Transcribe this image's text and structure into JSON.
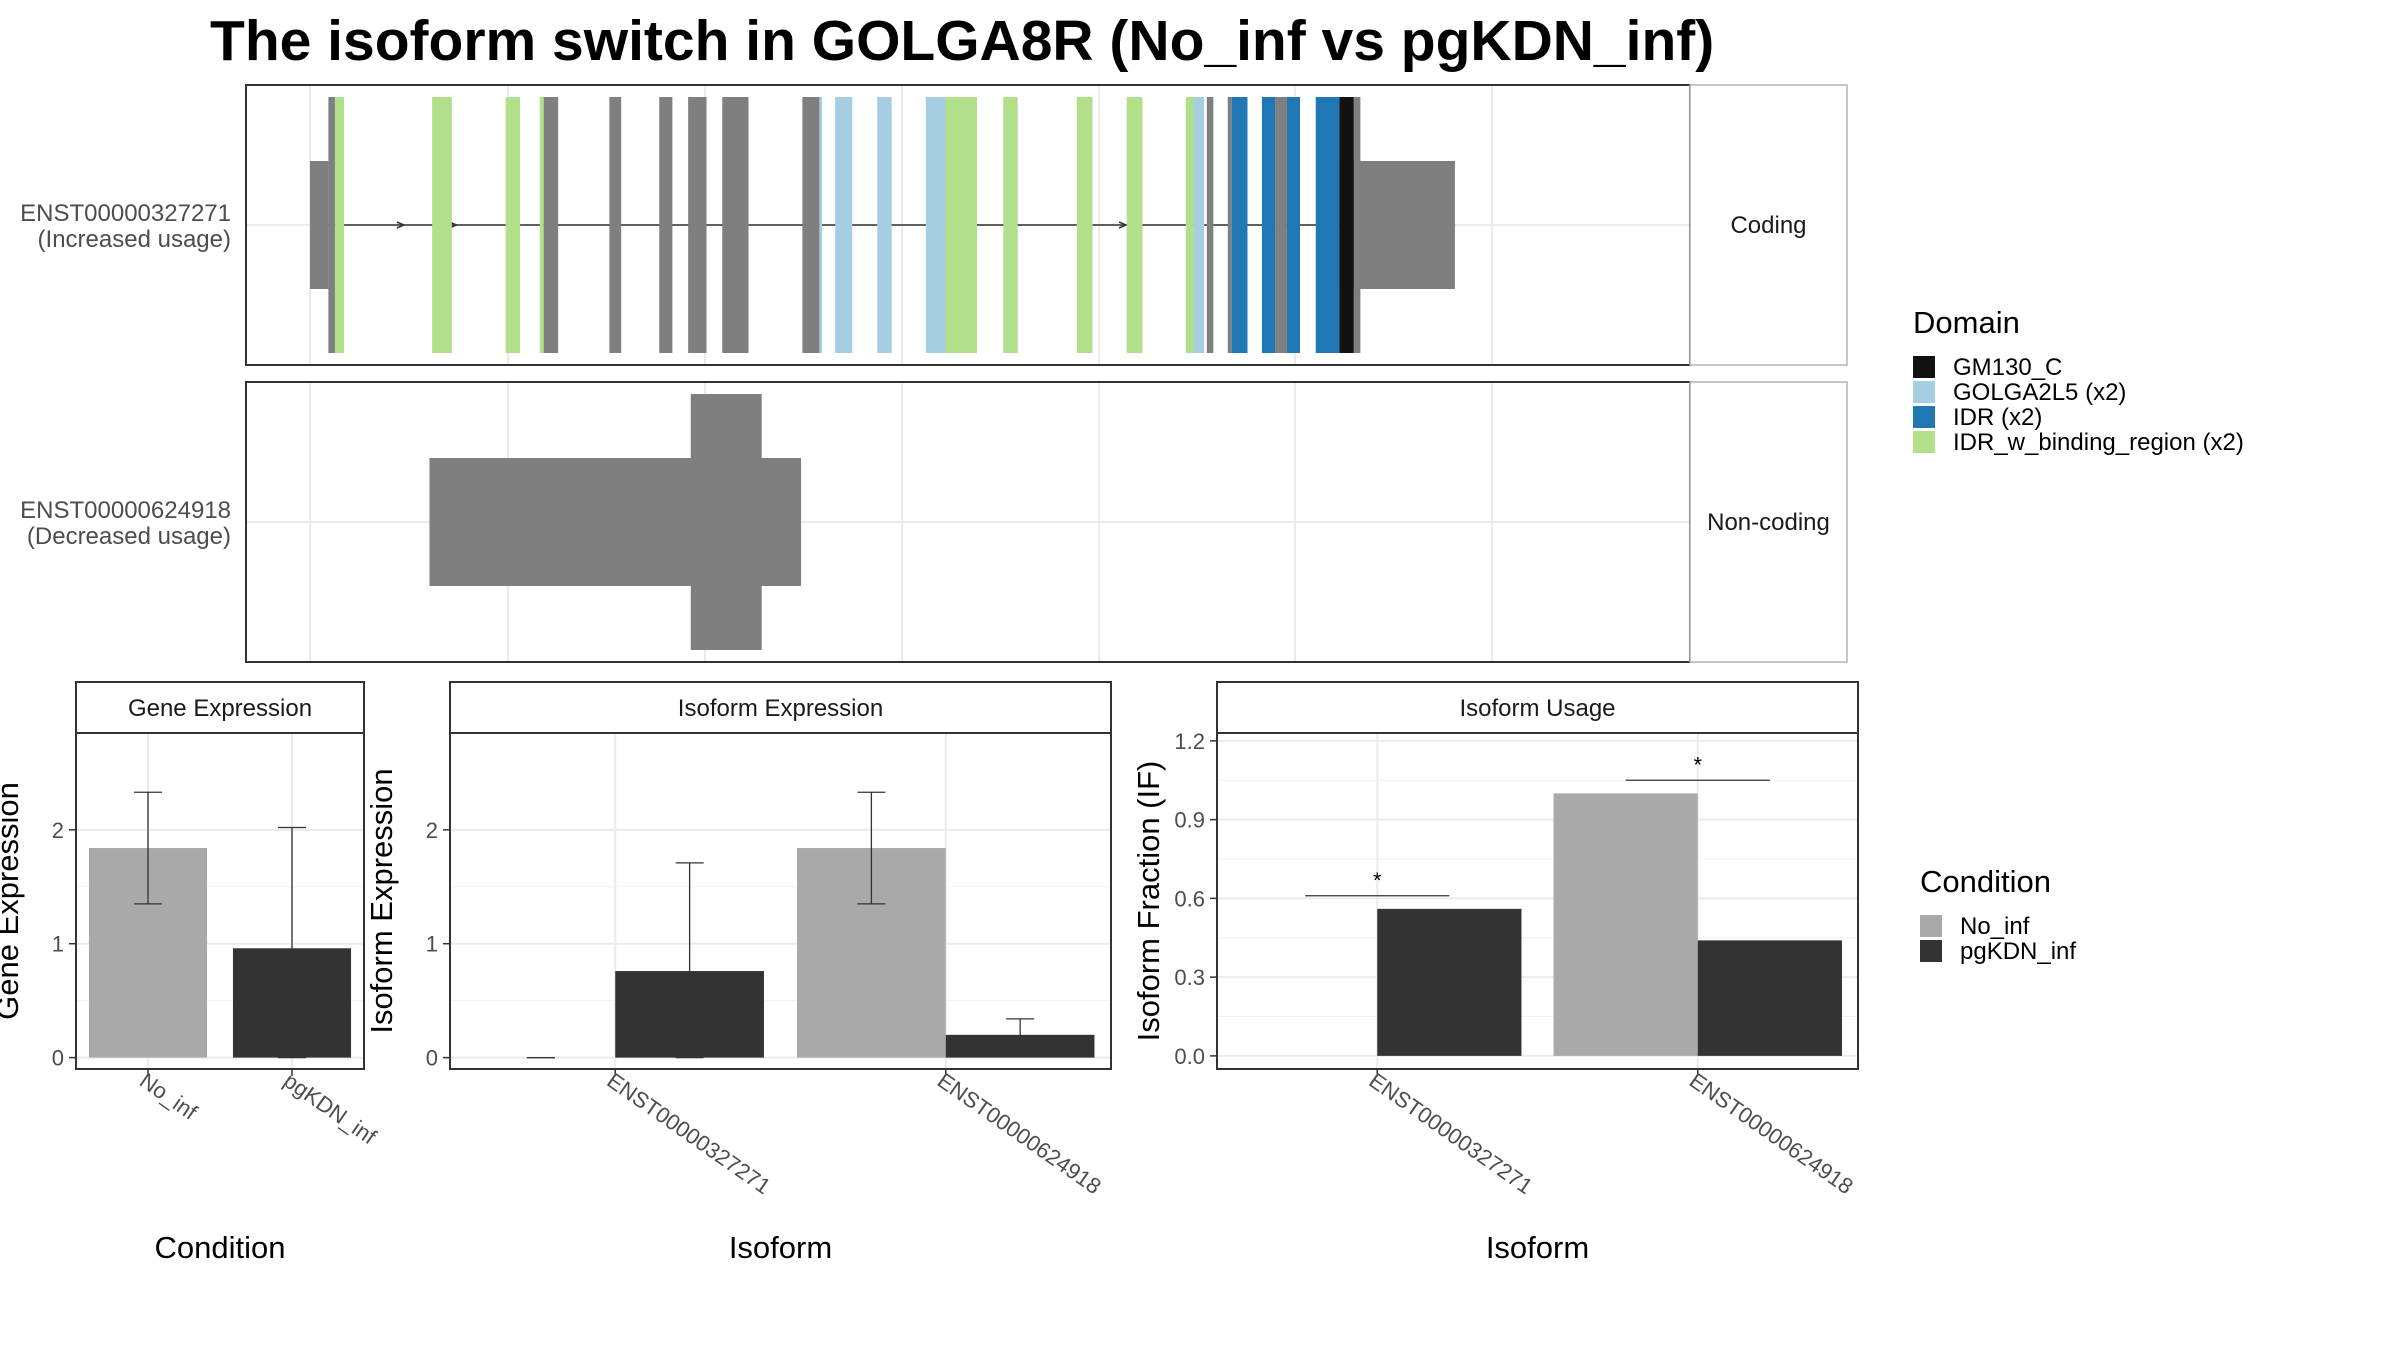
{
  "title": "The isoform switch in GOLGA8R (No_inf vs pgKDN_inf)",
  "transcripts": [
    {
      "id": "ENST00000327271",
      "usage": "(Increased usage)",
      "type": "Coding",
      "utr5": [
        0,
        0.014
      ],
      "utr3": [
        0.784,
        0.872
      ],
      "exons": [
        {
          "s": 0.014,
          "e": 0.019,
          "c": "#7f7f7f"
        },
        {
          "s": 0.019,
          "e": 0.026,
          "c": "#b2df8a"
        },
        {
          "s": 0.093,
          "e": 0.108,
          "c": "#b2df8a"
        },
        {
          "s": 0.149,
          "e": 0.16,
          "c": "#b2df8a"
        },
        {
          "s": 0.175,
          "e": 0.178,
          "c": "#b2df8a"
        },
        {
          "s": 0.178,
          "e": 0.189,
          "c": "#7f7f7f"
        },
        {
          "s": 0.228,
          "e": 0.237,
          "c": "#7f7f7f"
        },
        {
          "s": 0.266,
          "e": 0.276,
          "c": "#7f7f7f"
        },
        {
          "s": 0.288,
          "e": 0.302,
          "c": "#7f7f7f"
        },
        {
          "s": 0.314,
          "e": 0.334,
          "c": "#7f7f7f"
        },
        {
          "s": 0.375,
          "e": 0.388,
          "c": "#7f7f7f"
        },
        {
          "s": 0.388,
          "e": 0.39,
          "c": "#a6cee3"
        },
        {
          "s": 0.4,
          "e": 0.413,
          "c": "#a6cee3"
        },
        {
          "s": 0.432,
          "e": 0.443,
          "c": "#a6cee3"
        },
        {
          "s": 0.469,
          "e": 0.484,
          "c": "#a6cee3"
        },
        {
          "s": 0.484,
          "e": 0.508,
          "c": "#b2df8a"
        },
        {
          "s": 0.528,
          "e": 0.539,
          "c": "#b2df8a"
        },
        {
          "s": 0.584,
          "e": 0.596,
          "c": "#b2df8a"
        },
        {
          "s": 0.622,
          "e": 0.634,
          "c": "#b2df8a"
        },
        {
          "s": 0.667,
          "e": 0.673,
          "c": "#b2df8a"
        },
        {
          "s": 0.673,
          "e": 0.681,
          "c": "#a6cee3"
        },
        {
          "s": 0.683,
          "e": 0.688,
          "c": "#7f7f7f"
        },
        {
          "s": 0.699,
          "e": 0.702,
          "c": "#7f7f7f"
        },
        {
          "s": 0.702,
          "e": 0.714,
          "c": "#1f78b4"
        },
        {
          "s": 0.725,
          "e": 0.735,
          "c": "#1f78b4"
        },
        {
          "s": 0.735,
          "e": 0.744,
          "c": "#7f7f7f"
        },
        {
          "s": 0.744,
          "e": 0.754,
          "c": "#1f78b4"
        },
        {
          "s": 0.766,
          "e": 0.784,
          "c": "#1f78b4"
        },
        {
          "s": 0.784,
          "e": 0.795,
          "c": "#111111"
        },
        {
          "s": 0.795,
          "e": 0.8,
          "c": "#7f7f7f"
        }
      ],
      "arrows": [
        0.07,
        0.11,
        0.59,
        0.62
      ]
    },
    {
      "id": "ENST00000624918",
      "usage": "(Decreased usage)",
      "type": "Non-coding",
      "blocks": [
        {
          "s": 0.091,
          "e": 0.374,
          "h": "mid"
        },
        {
          "s": 0.29,
          "e": 0.344,
          "h": "tall"
        }
      ]
    }
  ],
  "domain_legend": {
    "title": "Domain",
    "items": [
      {
        "label": "GM130_C",
        "color": "#111111"
      },
      {
        "label": "GOLGA2L5 (x2)",
        "color": "#a6cee3"
      },
      {
        "label": "IDR (x2)",
        "color": "#1f78b4"
      },
      {
        "label": "IDR_w_binding_region (x2)",
        "color": "#b2df8a"
      }
    ]
  },
  "condition_legend": {
    "title": "Condition",
    "items": [
      {
        "label": "No_inf",
        "color": "#a9a9a9"
      },
      {
        "label": "pgKDN_inf",
        "color": "#333333"
      }
    ]
  },
  "chart_data": [
    {
      "type": "bar",
      "title": "Gene Expression",
      "xlabel": "Condition",
      "ylabel": "Gene Expression",
      "categories": [
        "No_inf",
        "pgKDN_inf"
      ],
      "values": [
        1.84,
        0.96
      ],
      "error_low": [
        1.35,
        0.0
      ],
      "error_high": [
        2.33,
        2.02
      ],
      "colors": [
        "#a9a9a9",
        "#333333"
      ],
      "ylim": [
        -0.1,
        2.85
      ],
      "yticks": [
        0,
        1,
        2
      ]
    },
    {
      "type": "bar",
      "title": "Isoform Expression",
      "xlabel": "Isoform",
      "ylabel": "Isoform Expression",
      "categories": [
        "ENST00000327271",
        "ENST00000624918"
      ],
      "series": [
        {
          "name": "No_inf",
          "values": [
            0.0,
            1.84
          ],
          "error_low": [
            0.0,
            1.35
          ],
          "error_high": [
            0.0,
            2.33
          ],
          "color": "#a9a9a9"
        },
        {
          "name": "pgKDN_inf",
          "values": [
            0.76,
            0.2
          ],
          "error_low": [
            0.0,
            0.06
          ],
          "error_high": [
            1.71,
            0.34
          ],
          "color": "#333333"
        }
      ],
      "ylim": [
        -0.1,
        2.85
      ],
      "yticks": [
        0,
        1,
        2
      ]
    },
    {
      "type": "bar",
      "title": "Isoform Usage",
      "xlabel": "Isoform",
      "ylabel": "Isoform Fraction (IF)",
      "categories": [
        "ENST00000327271",
        "ENST00000624918"
      ],
      "series": [
        {
          "name": "No_inf",
          "values": [
            0.0,
            1.0
          ],
          "color": "#a9a9a9"
        },
        {
          "name": "pgKDN_inf",
          "values": [
            0.56,
            0.44
          ],
          "color": "#333333"
        }
      ],
      "significance": [
        {
          "category": 0,
          "y": 0.61,
          "label": "*"
        },
        {
          "category": 1,
          "y": 1.05,
          "label": "*"
        }
      ],
      "ylim": [
        -0.05,
        1.23
      ],
      "yticks": [
        "0.0",
        "0.3",
        "0.6",
        "0.9",
        "1.2"
      ]
    }
  ]
}
